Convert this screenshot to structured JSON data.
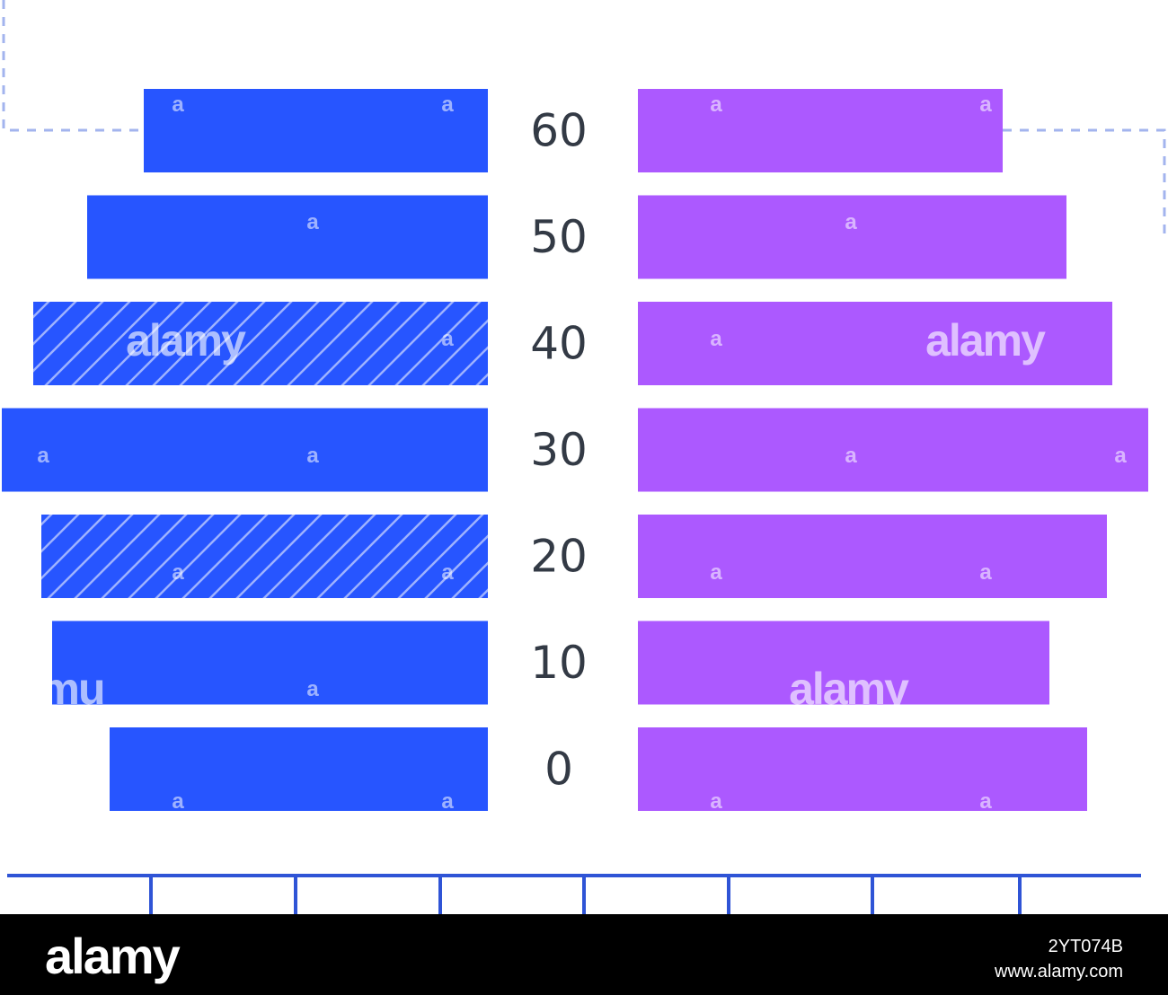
{
  "chart_data": {
    "type": "bar",
    "layout": "population-pyramid",
    "categories": [
      "0",
      "10",
      "20",
      "30",
      "40",
      "50",
      "60"
    ],
    "series": [
      {
        "side": "left",
        "color": "#2755ff",
        "values": [
          421,
          485,
          497,
          541,
          506,
          446,
          383
        ],
        "hatched": [
          false,
          false,
          true,
          false,
          true,
          false,
          false
        ]
      },
      {
        "side": "right",
        "color": "#ac59ff",
        "values": [
          500,
          458,
          522,
          568,
          528,
          477,
          406
        ]
      }
    ],
    "xlim": [
      0,
      570
    ],
    "axis_color": "#2f54d6",
    "guide_color": "#a3b4ee",
    "xlabel": "",
    "ylabel": "",
    "title": ""
  },
  "watermark": {
    "small": "a",
    "brand": "alamy",
    "brand_fragment": "mu"
  },
  "footer": {
    "brand": "alamy",
    "image_id": "2YT074B",
    "site": "www.alamy.com"
  }
}
